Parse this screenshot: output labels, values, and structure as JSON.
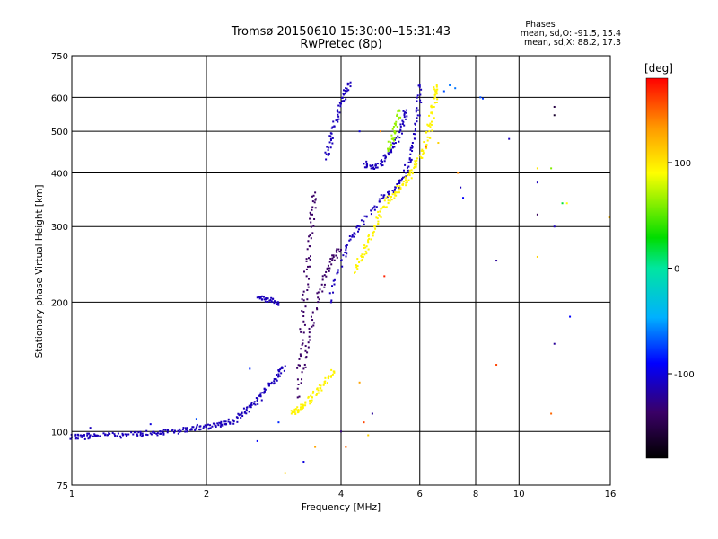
{
  "chart_data": {
    "type": "scatter",
    "title": "Tromsø 20150610 15:30:00–15:31:43",
    "subtitle": "RwPretec (8p)",
    "xlabel": "Frequency [MHz]",
    "ylabel": "Stationary phase Virtual Height [km]",
    "x_scale": "log",
    "y_scale": "log",
    "xlim": [
      1,
      16
    ],
    "ylim": [
      75,
      750
    ],
    "x_ticks": [
      "1",
      "2",
      "4",
      "6",
      "8",
      "10",
      "16"
    ],
    "x_tick_values": [
      1,
      2,
      4,
      6,
      8,
      10,
      16
    ],
    "y_ticks": [
      "75",
      "100",
      "200",
      "300",
      "400",
      "500",
      "600",
      "750"
    ],
    "y_tick_values": [
      75,
      100,
      200,
      300,
      400,
      500,
      600,
      750
    ],
    "grid": true,
    "phase_stats": {
      "heading": "Phases",
      "o_line": "mean, sd,O: -91.5, 15.4",
      "x_line": "mean, sd,X:  88.2, 17.3"
    },
    "colorbar": {
      "label": "[deg]",
      "range": [
        -180,
        180
      ],
      "ticks": [
        "100",
        "0",
        "-100"
      ],
      "tick_values": [
        100,
        0,
        -100
      ]
    },
    "series": [
      {
        "phase": -110,
        "traces": [
          [
            [
              1.0,
              97
            ],
            [
              1.05,
              97
            ],
            [
              1.1,
              98
            ],
            [
              1.2,
              98
            ],
            [
              1.3,
              98
            ],
            [
              1.4,
              98.5
            ],
            [
              1.5,
              99
            ],
            [
              1.6,
              99.5
            ],
            [
              1.7,
              100
            ],
            [
              1.8,
              101
            ],
            [
              1.9,
              102
            ],
            [
              2.0,
              102.5
            ],
            [
              2.1,
              103
            ],
            [
              2.2,
              104
            ],
            [
              2.3,
              106
            ],
            [
              2.4,
              110
            ],
            [
              2.5,
              114
            ],
            [
              2.6,
              118
            ],
            [
              2.7,
              124
            ],
            [
              2.8,
              130
            ],
            [
              2.9,
              136
            ],
            [
              3.0,
              142
            ]
          ],
          [
            [
              3.8,
              200
            ],
            [
              4.0,
              250
            ],
            [
              4.2,
              280
            ],
            [
              4.4,
              300
            ],
            [
              4.7,
              330
            ],
            [
              5.0,
              355
            ],
            [
              5.3,
              370
            ],
            [
              5.5,
              390
            ],
            [
              5.7,
              430
            ],
            [
              5.85,
              480
            ],
            [
              5.95,
              560
            ],
            [
              6.0,
              640
            ]
          ],
          [
            [
              4.5,
              420
            ],
            [
              4.7,
              410
            ],
            [
              4.9,
              420
            ],
            [
              5.1,
              445
            ],
            [
              5.3,
              470
            ],
            [
              5.5,
              520
            ],
            [
              5.6,
              560
            ]
          ],
          [
            [
              3.7,
              430
            ],
            [
              3.8,
              480
            ],
            [
              3.9,
              530
            ],
            [
              4.0,
              580
            ],
            [
              4.1,
              620
            ],
            [
              4.2,
              650
            ]
          ],
          [
            [
              2.6,
              205
            ],
            [
              2.7,
              203
            ],
            [
              2.8,
              201
            ],
            [
              2.9,
              199
            ]
          ]
        ]
      },
      {
        "phase": -135,
        "traces": [
          [
            [
              3.2,
              120
            ],
            [
              3.25,
              150
            ],
            [
              3.3,
              190
            ],
            [
              3.35,
              230
            ],
            [
              3.4,
              270
            ],
            [
              3.45,
              320
            ],
            [
              3.5,
              360
            ]
          ],
          [
            [
              3.3,
              140
            ],
            [
              3.4,
              170
            ],
            [
              3.55,
              205
            ],
            [
              3.7,
              235
            ],
            [
              3.85,
              255
            ],
            [
              4.0,
              265
            ]
          ]
        ]
      },
      {
        "phase": 95,
        "traces": [
          [
            [
              3.1,
              110
            ],
            [
              3.2,
              112
            ],
            [
              3.3,
              115
            ],
            [
              3.45,
              120
            ],
            [
              3.6,
              126
            ],
            [
              3.75,
              133
            ],
            [
              3.85,
              138
            ]
          ],
          [
            [
              4.3,
              235
            ],
            [
              4.45,
              255
            ],
            [
              4.6,
              275
            ],
            [
              4.75,
              300
            ],
            [
              4.9,
              325
            ],
            [
              5.1,
              345
            ],
            [
              5.3,
              360
            ],
            [
              5.5,
              375
            ],
            [
              5.7,
              395
            ],
            [
              5.9,
              420
            ]
          ],
          [
            [
              5.9,
              420
            ],
            [
              6.1,
              450
            ],
            [
              6.3,
              500
            ],
            [
              6.4,
              550
            ],
            [
              6.5,
              600
            ],
            [
              6.55,
              640
            ]
          ]
        ]
      },
      {
        "phase": 65,
        "traces": [
          [
            [
              5.1,
              450
            ],
            [
              5.2,
              480
            ],
            [
              5.3,
              520
            ],
            [
              5.4,
              560
            ]
          ]
        ]
      }
    ],
    "scattered_points": [
      [
        8.3,
        596,
        -75
      ],
      [
        8.2,
        600,
        -70
      ],
      [
        7.0,
        640,
        -60
      ],
      [
        7.2,
        630,
        -60
      ],
      [
        6.8,
        620,
        -70
      ],
      [
        9.5,
        480,
        -110
      ],
      [
        11.0,
        380,
        -110
      ],
      [
        12.0,
        300,
        -110
      ],
      [
        12.5,
        340,
        20
      ],
      [
        12.8,
        340,
        90
      ],
      [
        11.0,
        320,
        -140
      ],
      [
        12.0,
        570,
        -150
      ],
      [
        12.0,
        545,
        -160
      ],
      [
        11.0,
        410,
        100
      ],
      [
        11.8,
        410,
        60
      ],
      [
        11.0,
        255,
        110
      ],
      [
        8.9,
        250,
        -120
      ],
      [
        8.9,
        143,
        160
      ],
      [
        11.8,
        110,
        150
      ],
      [
        13.0,
        185,
        -90
      ],
      [
        12.0,
        160,
        -120
      ],
      [
        15.9,
        315,
        120
      ],
      [
        7.4,
        370,
        -110
      ],
      [
        7.5,
        350,
        -90
      ],
      [
        7.3,
        400,
        140
      ],
      [
        6.2,
        460,
        150
      ],
      [
        6.6,
        470,
        110
      ],
      [
        5.0,
        230,
        170
      ],
      [
        4.9,
        500,
        140
      ],
      [
        4.4,
        500,
        -100
      ],
      [
        4.4,
        130,
        130
      ],
      [
        4.7,
        110,
        -120
      ],
      [
        4.5,
        105,
        160
      ],
      [
        4.0,
        100,
        -130
      ],
      [
        4.1,
        92,
        150
      ],
      [
        4.6,
        98,
        110
      ],
      [
        3.5,
        92,
        130
      ],
      [
        3.0,
        80,
        110
      ],
      [
        3.3,
        85,
        -100
      ],
      [
        2.6,
        95,
        -90
      ],
      [
        2.9,
        105,
        -80
      ],
      [
        2.5,
        140,
        -80
      ],
      [
        1.9,
        107,
        -70
      ],
      [
        1.1,
        102,
        -110
      ],
      [
        1.5,
        104,
        -100
      ]
    ]
  }
}
